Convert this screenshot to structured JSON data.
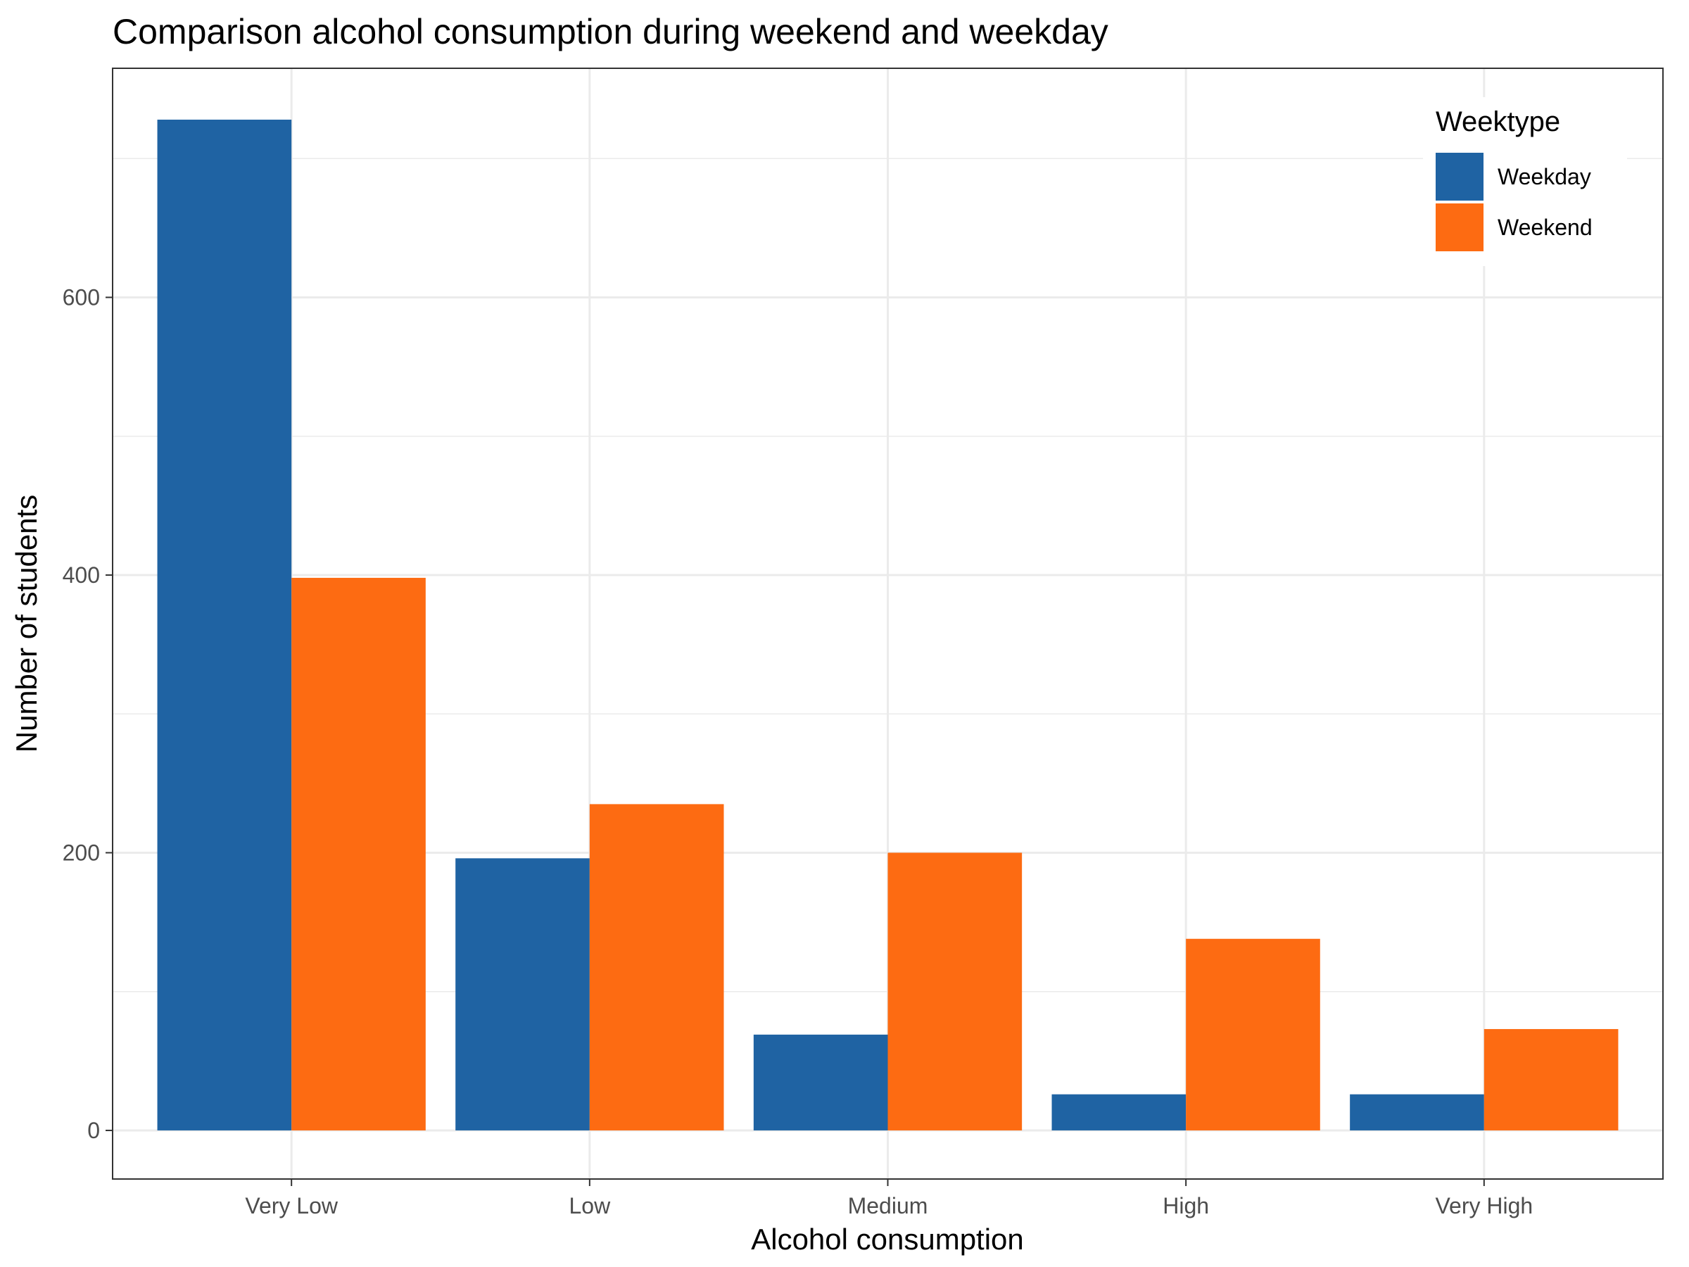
{
  "chart_data": {
    "type": "bar",
    "title": "Comparison alcohol consumption during weekend and weekday",
    "xlabel": "Alcohol consumption",
    "ylabel": "Number of students",
    "categories": [
      "Very Low",
      "Low",
      "Medium",
      "High",
      "Very High"
    ],
    "series": [
      {
        "name": "Weekday",
        "color": "#1f63a3",
        "values": [
          728,
          196,
          69,
          26,
          26
        ]
      },
      {
        "name": "Weekend",
        "color": "#fd6b12",
        "values": [
          398,
          235,
          200,
          138,
          73
        ]
      }
    ],
    "ylim": [
      -35,
      765
    ],
    "yticks": [
      0,
      200,
      400,
      600
    ],
    "yticks_minor": [
      100,
      300,
      500,
      700
    ],
    "grid": true,
    "legend": {
      "title": "Weektype",
      "position": "top-right"
    }
  }
}
